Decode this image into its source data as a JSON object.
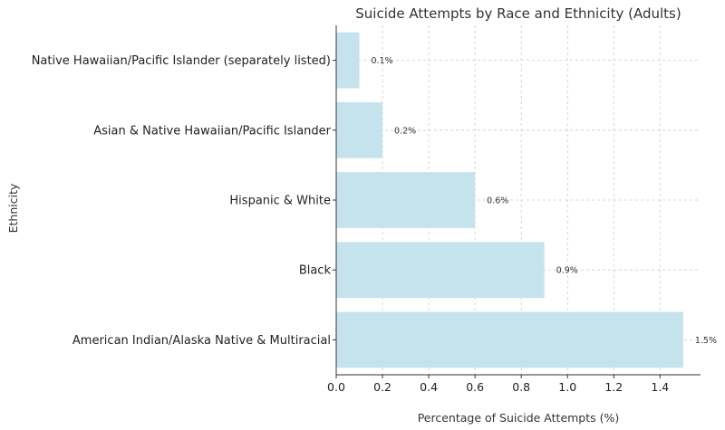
{
  "chart_data": {
    "type": "bar",
    "orientation": "horizontal",
    "title": "Suicide Attempts by Race and Ethnicity (Adults)",
    "xlabel": "Percentage of Suicide Attempts (%)",
    "ylabel": "Ethnicity",
    "categories": [
      "Native Hawaiian/Pacific Islander (separately listed)",
      "Asian & Native Hawaiian/Pacific Islander",
      "Hispanic & White",
      "Black",
      "American Indian/Alaska Native & Multiracial"
    ],
    "values": [
      0.1,
      0.2,
      0.6,
      0.9,
      1.5
    ],
    "data_labels": [
      "0.1%",
      "0.2%",
      "0.6%",
      "0.9%",
      "1.5%"
    ],
    "xlim": [
      0,
      1.575
    ],
    "xticks": [
      0,
      0.2,
      0.4,
      0.6,
      0.8,
      1.0,
      1.2,
      1.4
    ],
    "xtick_labels": [
      "0.0",
      "0.2",
      "0.4",
      "0.6",
      "0.8",
      "1.0",
      "1.2",
      "1.4"
    ],
    "grid": true,
    "bar_color": "#c5e3ec"
  }
}
